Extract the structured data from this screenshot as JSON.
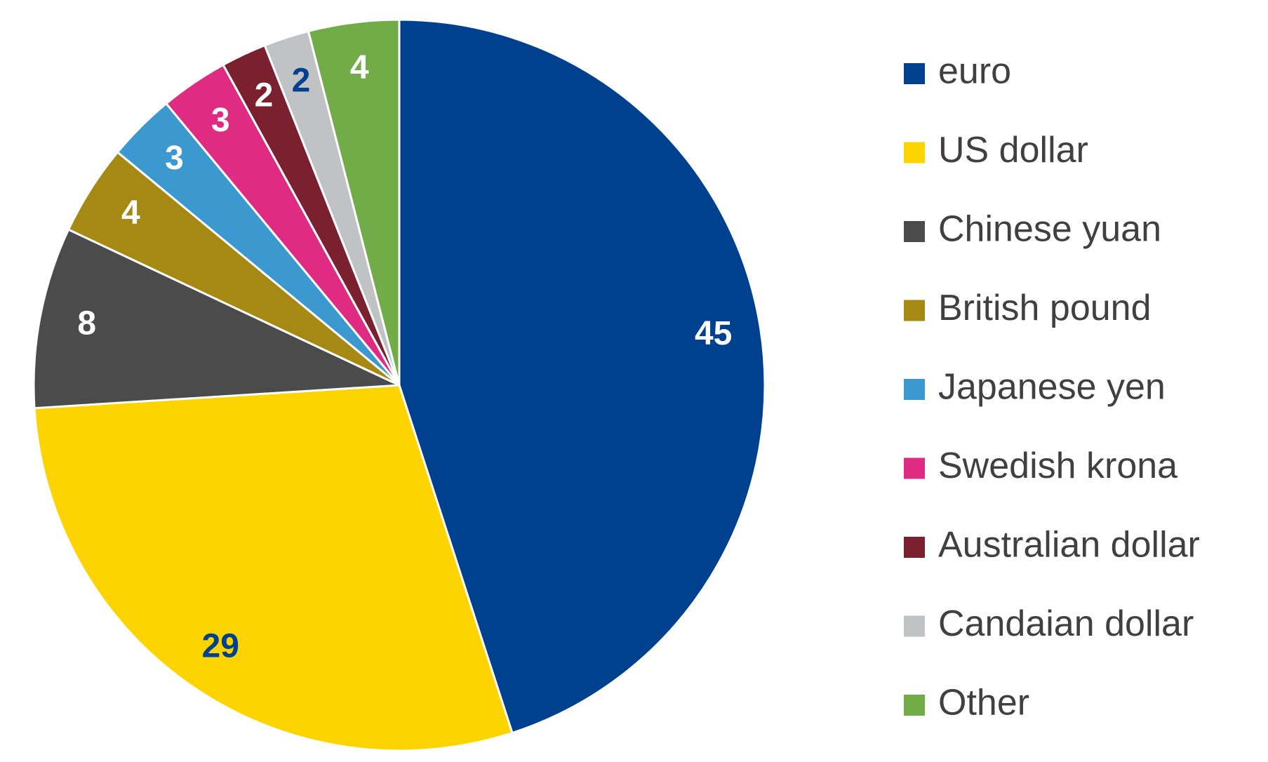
{
  "chart_data": {
    "type": "pie",
    "categories": [
      "euro",
      "US dollar",
      "Chinese yuan",
      "British pound",
      "Japanese yen",
      "Swedish krona",
      "Australian dollar",
      "Candaian dollar",
      "Other"
    ],
    "values": [
      45,
      29,
      8,
      4,
      3,
      3,
      2,
      2,
      4
    ],
    "colors": [
      "#00418f",
      "#fdd400",
      "#4b4b4b",
      "#a68913",
      "#3b99d0",
      "#e02b82",
      "#7a202e",
      "#c1c2c4",
      "#71ac48"
    ],
    "label_colors": [
      "#ffffff",
      "#00418f",
      "#ffffff",
      "#ffffff",
      "#ffffff",
      "#ffffff",
      "#ffffff",
      "#00418f",
      "#ffffff"
    ]
  }
}
